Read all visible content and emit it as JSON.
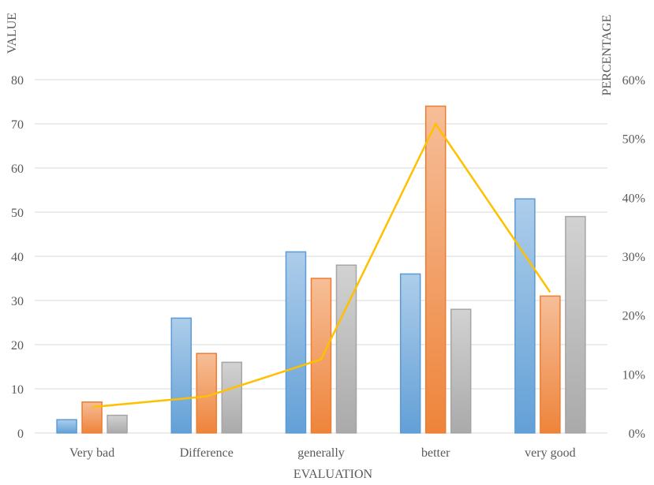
{
  "chart_data": {
    "type": "bar",
    "title": "",
    "categories": [
      "Very bad",
      "Difference",
      "generally",
      "better",
      "very good"
    ],
    "series": [
      {
        "name": "",
        "values": [
          3,
          26,
          41,
          36,
          53
        ],
        "color": "#5b9bd5"
      },
      {
        "name": "",
        "values": [
          7,
          18,
          35,
          74,
          31
        ],
        "color": "#ed7d31"
      },
      {
        "name": "",
        "values": [
          4,
          16,
          38,
          28,
          49
        ],
        "color": "#a5a5a5"
      }
    ],
    "line_series": {
      "name": "",
      "axis": "secondary",
      "values": [
        4.4,
        6.2,
        12.5,
        52.5,
        23.9
      ],
      "color": "#ffc000"
    },
    "xlabel": "EVALUATION",
    "ylabel": "VALUE",
    "y2label": "PERCENTAGE",
    "ylim": [
      0,
      80
    ],
    "y2lim": [
      0,
      60
    ],
    "yticks": [
      "0",
      "10",
      "20",
      "30",
      "40",
      "50",
      "60",
      "70",
      "80"
    ],
    "y2ticks": [
      "0%",
      "10%",
      "20%",
      "30%",
      "40%",
      "50%",
      "60%"
    ],
    "grid": true,
    "legend": "none"
  }
}
